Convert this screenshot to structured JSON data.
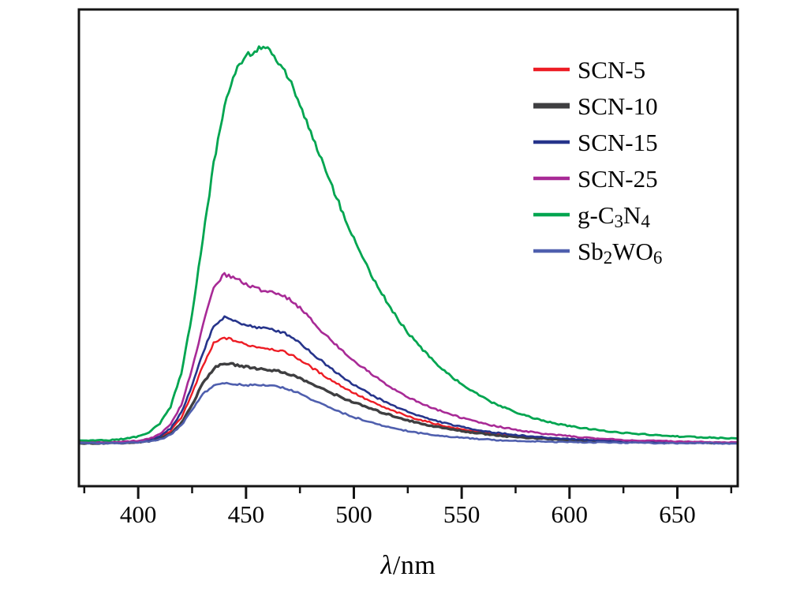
{
  "figure": {
    "xlabel_lambda": "λ",
    "xlabel_rest": "/nm"
  },
  "chart_data": {
    "type": "line",
    "title": "",
    "xlabel": "λ/nm",
    "ylabel": "",
    "grid": false,
    "legend_position": "top-right",
    "xlim": [
      372,
      678
    ],
    "ylim": [
      0,
      1.1
    ],
    "x_ticks": [
      400,
      450,
      500,
      550,
      600,
      650
    ],
    "x_minor_ticks": [
      375,
      425,
      475,
      525,
      575,
      625,
      675
    ],
    "x_start": 375,
    "x_step": 5,
    "frame_color": "#141414",
    "series": [
      {
        "name": "SCN-5",
        "parts": [
          {
            "t": "SCN-5"
          }
        ],
        "color": "#ed1c24",
        "values": [
          0.004,
          0.004,
          0.004,
          0.005,
          0.005,
          0.007,
          0.01,
          0.017,
          0.034,
          0.068,
          0.128,
          0.198,
          0.255,
          0.27,
          0.262,
          0.252,
          0.247,
          0.243,
          0.238,
          0.229,
          0.214,
          0.196,
          0.178,
          0.161,
          0.145,
          0.13,
          0.116,
          0.103,
          0.091,
          0.081,
          0.071,
          0.063,
          0.056,
          0.049,
          0.043,
          0.038,
          0.034,
          0.03,
          0.026,
          0.023,
          0.021,
          0.018,
          0.016,
          0.015,
          0.013,
          0.012,
          0.01,
          0.009,
          0.008,
          0.008,
          0.007,
          0.006,
          0.006,
          0.005,
          0.005,
          0.005,
          0.004,
          0.004,
          0.004,
          0.003,
          0.003
        ]
      },
      {
        "name": "SCN-10",
        "parts": [
          {
            "t": "SCN-10"
          }
        ],
        "color": "#3f3f41",
        "values": [
          0.003,
          0.003,
          0.003,
          0.004,
          0.004,
          0.006,
          0.008,
          0.014,
          0.027,
          0.054,
          0.1,
          0.155,
          0.192,
          0.205,
          0.201,
          0.196,
          0.192,
          0.189,
          0.185,
          0.178,
          0.167,
          0.154,
          0.141,
          0.129,
          0.117,
          0.106,
          0.096,
          0.086,
          0.077,
          0.069,
          0.061,
          0.054,
          0.048,
          0.043,
          0.038,
          0.034,
          0.03,
          0.027,
          0.024,
          0.021,
          0.019,
          0.017,
          0.015,
          0.014,
          0.012,
          0.011,
          0.01,
          0.009,
          0.008,
          0.008,
          0.007,
          0.007,
          0.006,
          0.006,
          0.005,
          0.005,
          0.005,
          0.004,
          0.004,
          0.004,
          0.004
        ]
      },
      {
        "name": "SCN-15",
        "parts": [
          {
            "t": "SCN-15"
          }
        ],
        "color": "#26348b",
        "values": [
          0.005,
          0.005,
          0.005,
          0.005,
          0.006,
          0.008,
          0.012,
          0.02,
          0.04,
          0.08,
          0.148,
          0.232,
          0.3,
          0.32,
          0.312,
          0.302,
          0.296,
          0.292,
          0.287,
          0.276,
          0.257,
          0.233,
          0.211,
          0.19,
          0.17,
          0.151,
          0.135,
          0.12,
          0.106,
          0.094,
          0.083,
          0.073,
          0.064,
          0.057,
          0.05,
          0.044,
          0.039,
          0.034,
          0.03,
          0.027,
          0.024,
          0.021,
          0.019,
          0.017,
          0.015,
          0.014,
          0.012,
          0.011,
          0.01,
          0.009,
          0.008,
          0.008,
          0.007,
          0.007,
          0.006,
          0.006,
          0.005,
          0.005,
          0.005,
          0.004,
          0.004
        ]
      },
      {
        "name": "SCN-25",
        "parts": [
          {
            "t": "SCN-25"
          }
        ],
        "color": "#a82a96",
        "values": [
          0.005,
          0.005,
          0.005,
          0.006,
          0.007,
          0.009,
          0.014,
          0.025,
          0.05,
          0.1,
          0.19,
          0.3,
          0.4,
          0.43,
          0.42,
          0.405,
          0.393,
          0.388,
          0.382,
          0.368,
          0.345,
          0.316,
          0.287,
          0.26,
          0.235,
          0.212,
          0.191,
          0.171,
          0.152,
          0.135,
          0.12,
          0.106,
          0.095,
          0.085,
          0.076,
          0.067,
          0.06,
          0.053,
          0.047,
          0.042,
          0.037,
          0.033,
          0.029,
          0.026,
          0.023,
          0.021,
          0.018,
          0.016,
          0.014,
          0.013,
          0.011,
          0.01,
          0.009,
          0.009,
          0.008,
          0.007,
          0.007,
          0.006,
          0.006,
          0.005,
          0.005
        ]
      },
      {
        "name": "g-C3N4",
        "parts": [
          {
            "t": "g-C"
          },
          {
            "s": "3"
          },
          {
            "t": "N"
          },
          {
            "s": "4"
          }
        ],
        "color": "#00a550",
        "values": [
          0.01,
          0.01,
          0.01,
          0.012,
          0.015,
          0.02,
          0.03,
          0.052,
          0.095,
          0.18,
          0.33,
          0.52,
          0.71,
          0.855,
          0.945,
          0.985,
          1.0,
          0.995,
          0.97,
          0.925,
          0.86,
          0.79,
          0.72,
          0.65,
          0.585,
          0.52,
          0.462,
          0.41,
          0.362,
          0.32,
          0.283,
          0.25,
          0.222,
          0.196,
          0.173,
          0.152,
          0.134,
          0.118,
          0.104,
          0.092,
          0.082,
          0.072,
          0.064,
          0.057,
          0.051,
          0.046,
          0.042,
          0.038,
          0.035,
          0.032,
          0.029,
          0.027,
          0.025,
          0.023,
          0.022,
          0.02,
          0.019,
          0.018,
          0.017,
          0.016,
          0.015
        ]
      },
      {
        "name": "Sb2WO6",
        "parts": [
          {
            "t": "Sb"
          },
          {
            "s": "2"
          },
          {
            "t": "WO"
          },
          {
            "s": "6"
          }
        ],
        "color": "#4f5fae",
        "values": [
          0.003,
          0.003,
          0.003,
          0.003,
          0.004,
          0.005,
          0.007,
          0.012,
          0.024,
          0.048,
          0.088,
          0.128,
          0.148,
          0.155,
          0.152,
          0.15,
          0.15,
          0.149,
          0.146,
          0.139,
          0.128,
          0.115,
          0.102,
          0.09,
          0.079,
          0.069,
          0.06,
          0.052,
          0.045,
          0.039,
          0.034,
          0.029,
          0.025,
          0.022,
          0.019,
          0.017,
          0.015,
          0.013,
          0.011,
          0.01,
          0.009,
          0.008,
          0.008,
          0.007,
          0.006,
          0.006,
          0.005,
          0.005,
          0.005,
          0.004,
          0.004,
          0.004,
          0.004,
          0.003,
          0.003,
          0.003,
          0.003,
          0.003,
          0.003,
          0.002,
          0.002
        ]
      }
    ]
  }
}
